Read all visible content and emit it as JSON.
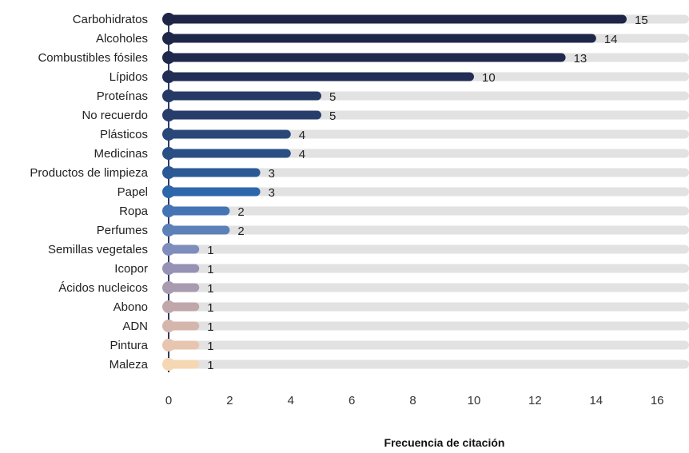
{
  "chart_data": {
    "type": "bar",
    "orientation": "horizontal",
    "categories": [
      "Carbohidratos",
      "Alcoholes",
      "Combustibles fósiles",
      "Lípidos",
      "Proteínas",
      "No recuerdo",
      "Plásticos",
      "Medicinas",
      "Productos de limpieza",
      "Papel",
      "Ropa",
      "Perfumes",
      "Semillas vegetales",
      "Icopor",
      "Ácidos nucleicos",
      "Abono",
      "ADN",
      "Pintura",
      "Maleza"
    ],
    "values": [
      15,
      14,
      13,
      10,
      5,
      5,
      4,
      4,
      3,
      3,
      2,
      2,
      1,
      1,
      1,
      1,
      1,
      1,
      1
    ],
    "xlabel": "Frecuencia de citación",
    "ylabel": "",
    "xlim": [
      0,
      17
    ],
    "xticks": [
      0,
      2,
      4,
      6,
      8,
      10,
      12,
      14,
      16
    ],
    "grid": false,
    "legend": "none",
    "colors": [
      "#1e2546",
      "#1f2749",
      "#20294c",
      "#232e56",
      "#263a66",
      "#273d6c",
      "#294879",
      "#2a4f85",
      "#2b5995",
      "#2e66ab",
      "#4474b3",
      "#5c80b8",
      "#7e8dbb",
      "#9692b5",
      "#a89aaf",
      "#bfa7ab",
      "#d4b6ad",
      "#e8c5ae",
      "#f6d7b3"
    ],
    "track_color": "#e2e2e2",
    "axis_color": "#2b3b6b"
  }
}
